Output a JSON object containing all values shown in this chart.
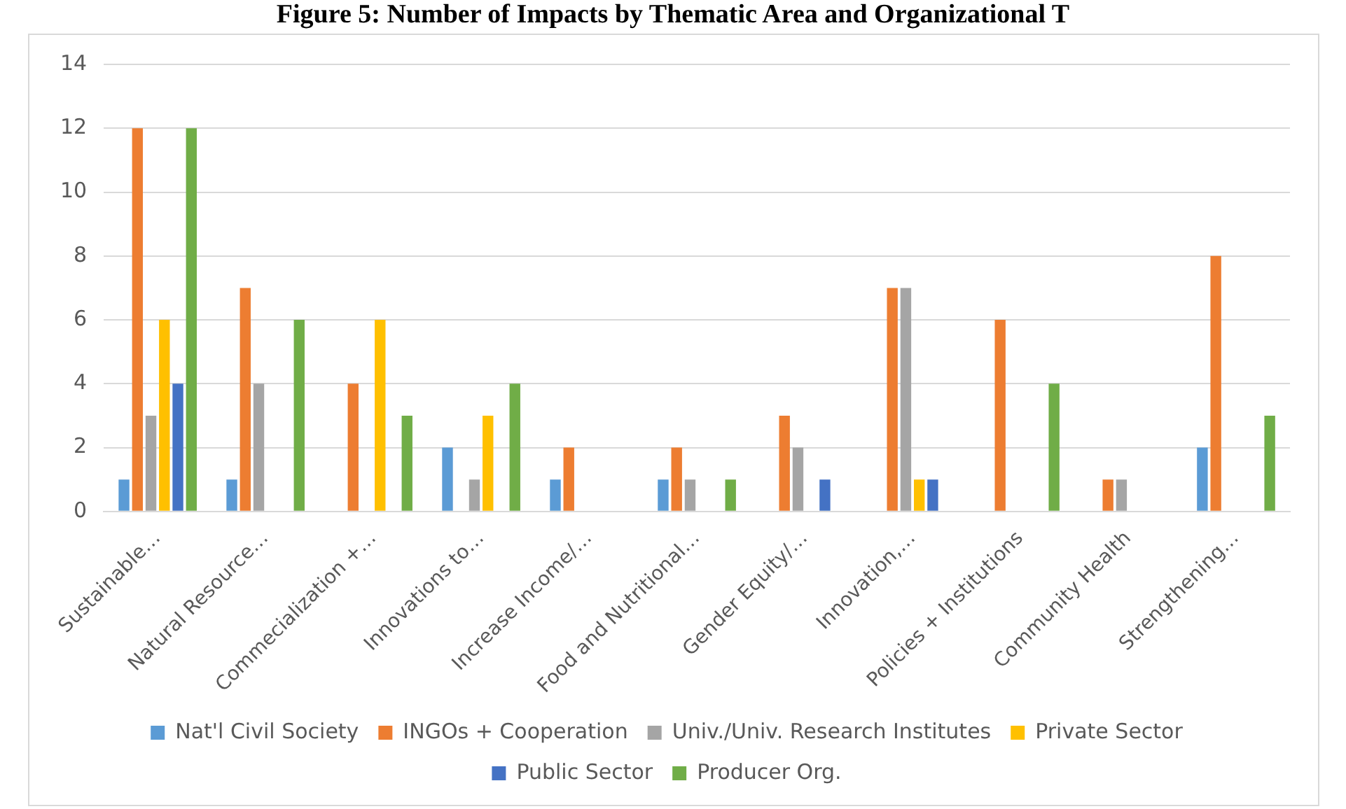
{
  "chart_data": {
    "type": "bar",
    "title": "Figure 5: Number of Impacts by Thematic Area and Organizational T",
    "categories": [
      "Sustainable…",
      "Natural Resource…",
      "Commecialization +…",
      "Innovations to…",
      "Increase Income/…",
      "Food and Nutritional…",
      "Gender Equity/…",
      "Innovation,…",
      "Policies + Institutions",
      "Community Health",
      "Strengthening…"
    ],
    "series": [
      {
        "name": "Nat'l Civil Society",
        "color": "#5b9bd5",
        "values": [
          1,
          1,
          0,
          2,
          1,
          1,
          0,
          0,
          0,
          0,
          2
        ]
      },
      {
        "name": "INGOs + Cooperation",
        "color": "#ed7d31",
        "values": [
          12,
          7,
          4,
          0,
          2,
          2,
          3,
          7,
          6,
          1,
          8
        ]
      },
      {
        "name": "Univ./Univ. Research Institutes",
        "color": "#a5a5a5",
        "values": [
          3,
          4,
          0,
          1,
          0,
          1,
          2,
          7,
          0,
          1,
          0
        ]
      },
      {
        "name": "Private Sector",
        "color": "#ffc000",
        "values": [
          6,
          0,
          6,
          3,
          0,
          0,
          0,
          1,
          0,
          0,
          0
        ]
      },
      {
        "name": "Public Sector",
        "color": "#4472c4",
        "values": [
          4,
          0,
          0,
          0,
          0,
          0,
          1,
          1,
          0,
          0,
          0
        ]
      },
      {
        "name": "Producer Org.",
        "color": "#70ad47",
        "values": [
          12,
          6,
          3,
          4,
          0,
          1,
          0,
          0,
          4,
          0,
          3
        ]
      }
    ],
    "ylim": [
      0,
      14
    ],
    "yticks": [
      0,
      2,
      4,
      6,
      8,
      10,
      12,
      14
    ],
    "grid": "y",
    "legend": "bottom"
  }
}
